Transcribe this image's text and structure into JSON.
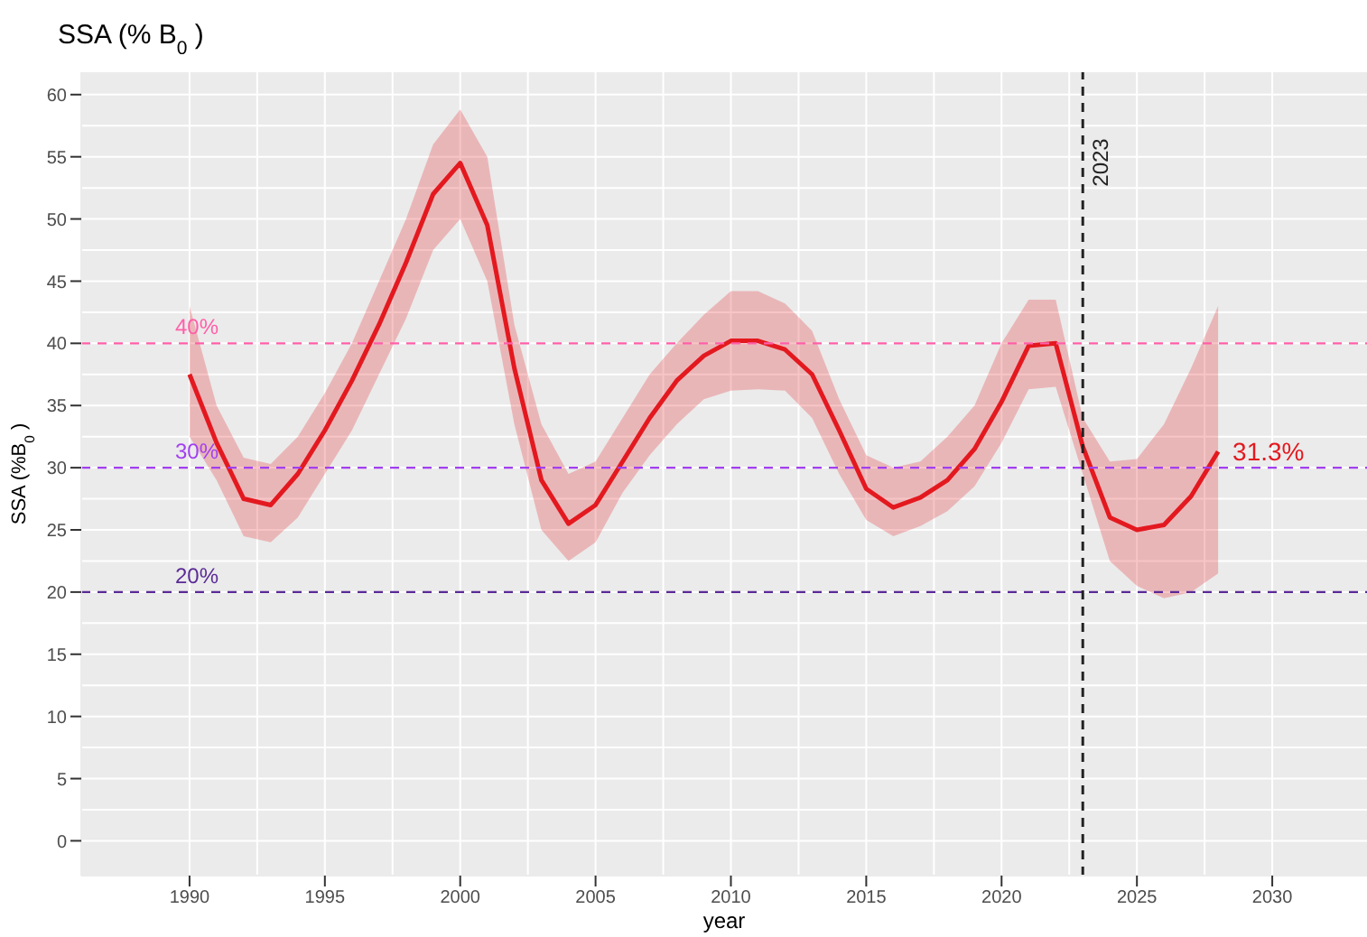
{
  "chart_data": {
    "type": "line",
    "title": "SSA (% B$_{0}$ )",
    "xlabel": "year",
    "ylabel": "SSA (%B$_{0}$ )",
    "x": [
      1990,
      1991,
      1992,
      1993,
      1994,
      1995,
      1996,
      1997,
      1998,
      1999,
      2000,
      2001,
      2002,
      2003,
      2004,
      2005,
      2006,
      2007,
      2008,
      2009,
      2010,
      2011,
      2012,
      2013,
      2014,
      2015,
      2016,
      2017,
      2018,
      2019,
      2020,
      2021,
      2022,
      2023,
      2024,
      2025,
      2026,
      2027,
      2028
    ],
    "series": [
      {
        "color": "#e3191f",
        "values": [
          37.5,
          32,
          27.5,
          27,
          29.5,
          33,
          37,
          41.5,
          46.5,
          52,
          54.5,
          49.5,
          38,
          29,
          25.5,
          27,
          30.5,
          34,
          37,
          39,
          40.2,
          40.2,
          39.5,
          37.5,
          33,
          28.3,
          26.8,
          27.6,
          29,
          31.5,
          35.3,
          39.8,
          40,
          31.7,
          26,
          25,
          25.4,
          27.7,
          31.3
        ],
        "lower": [
          32.5,
          29,
          24.5,
          24,
          26,
          29.5,
          33,
          37.5,
          42,
          47.5,
          50,
          45,
          33.5,
          25,
          22.5,
          24,
          28,
          31,
          33.5,
          35.5,
          36.2,
          36.3,
          36.2,
          34,
          29.5,
          25.8,
          24.5,
          25.3,
          26.5,
          28.5,
          32,
          36.3,
          36.5,
          29.5,
          22.5,
          20.5,
          19.5,
          20,
          21.5
        ],
        "upper": [
          43,
          35,
          30.8,
          30.3,
          32.5,
          36,
          40,
          45,
          50,
          56,
          58.8,
          55,
          41.5,
          33.5,
          29.5,
          30.5,
          34,
          37.5,
          40,
          42.3,
          44.2,
          44.2,
          43.2,
          41,
          35.5,
          31,
          30,
          30.5,
          32.5,
          35,
          40,
          43.5,
          43.5,
          34,
          30.5,
          30.7,
          33.5,
          38,
          43
        ]
      }
    ],
    "xlim": [
      1986,
      2033.5
    ],
    "xticks": [
      1990,
      1995,
      2000,
      2005,
      2010,
      2015,
      2020,
      2025,
      2030
    ],
    "ylim": [
      -2.8,
      61.8
    ],
    "yticks": [
      0,
      5,
      10,
      15,
      20,
      25,
      30,
      35,
      40,
      45,
      50,
      55,
      60
    ],
    "grid": true,
    "legend": false,
    "marker": "none",
    "line_style": "solid",
    "ref_lines": [
      {
        "axis": "y",
        "value": 40,
        "label": "40%",
        "color": "#ff5fa8",
        "line_style": "dashed"
      },
      {
        "axis": "y",
        "value": 30,
        "label": "30%",
        "color": "#a23ff0",
        "line_style": "dashed"
      },
      {
        "axis": "y",
        "value": 20,
        "label": "20%",
        "color": "#5a2a96",
        "line_style": "dashed"
      },
      {
        "axis": "x",
        "value": 2023,
        "label": "2023",
        "color": "#222222",
        "line_style": "dashed"
      }
    ],
    "annotations": [
      {
        "text": "31.3%",
        "x": 2028,
        "y": 31.3
      }
    ]
  }
}
